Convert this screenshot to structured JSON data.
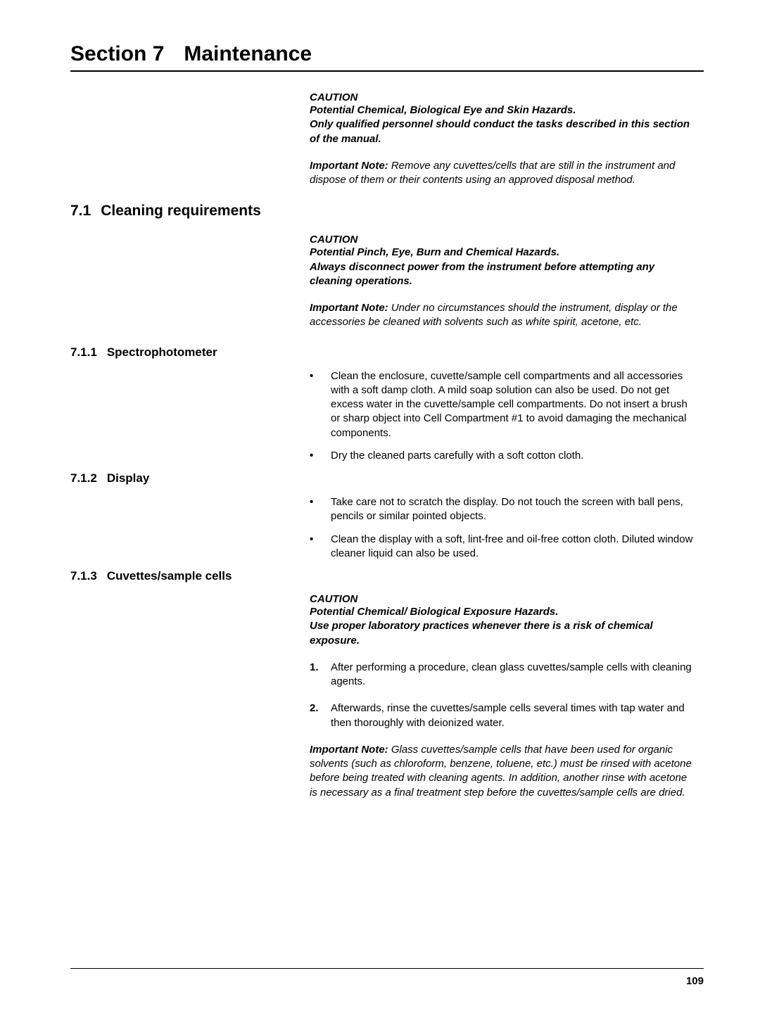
{
  "section_title": {
    "num": "Section 7",
    "text": "Maintenance"
  },
  "intro": {
    "caution": {
      "label": "CAUTION",
      "line1": "Potential Chemical, Biological Eye and Skin Hazards.",
      "line2": "Only qualified personnel should conduct the tasks described in this section of the manual."
    },
    "note": {
      "label": "Important Note:",
      "text": " Remove any cuvettes/cells that are still in the instrument and dispose of them or their contents using an approved disposal method."
    }
  },
  "s71": {
    "num": "7.1",
    "title": "Cleaning requirements",
    "caution": {
      "label": "CAUTION",
      "line1": "Potential Pinch, Eye, Burn and Chemical Hazards.",
      "line2": "Always disconnect power from the instrument before attempting any cleaning operations."
    },
    "note": {
      "label": "Important Note:",
      "text": " Under no circumstances should the instrument, display or the accessories be cleaned with solvents such as white spirit, acetone, etc."
    }
  },
  "s711": {
    "num": "7.1.1",
    "title": "Spectrophotometer",
    "b1": "Clean the enclosure, cuvette/sample cell compartments and all accessories with a soft damp cloth. A mild soap solution can also be used. Do not get excess water in the cuvette/sample cell compartments. Do not insert a brush or sharp object into Cell Compartment #1 to avoid damaging the mechanical components.",
    "b2": "Dry the cleaned parts carefully with a soft cotton cloth."
  },
  "s712": {
    "num": "7.1.2",
    "title": "Display",
    "b1": "Take care not to scratch the display. Do not touch the screen with ball pens, pencils or similar pointed objects.",
    "b2": "Clean the display with a soft, lint-free and oil-free cotton cloth. Diluted window cleaner liquid can also be used."
  },
  "s713": {
    "num": "7.1.3",
    "title": "Cuvettes/sample cells",
    "caution": {
      "label": "CAUTION",
      "line1": "Potential Chemical/ Biological Exposure Hazards.",
      "line2": "Use proper laboratory practices whenever there is a risk of chemical exposure."
    },
    "n1": {
      "marker": "1.",
      "text": "After performing a procedure, clean glass cuvettes/sample cells with cleaning agents."
    },
    "n2": {
      "marker": "2.",
      "text": "Afterwards, rinse the cuvettes/sample cells several times with tap water and then thoroughly with deionized water."
    },
    "note": {
      "label": "Important Note:",
      "text": " Glass cuvettes/sample cells that have been used for organic solvents (such as chloroform, benzene, toluene, etc.) must be rinsed with acetone before being treated with cleaning agents. In addition, another rinse with acetone is necessary as a final treatment step before the cuvettes/sample cells are dried."
    }
  },
  "page_number": "109"
}
